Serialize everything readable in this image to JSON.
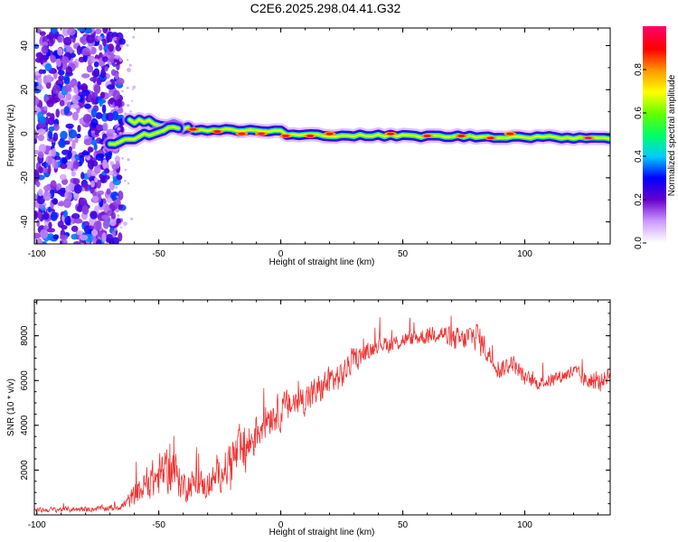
{
  "title": "C2E6.2025.298.04.41.G32",
  "chart_data": [
    {
      "type": "heatmap",
      "xlabel": "Height of straight line (km)",
      "ylabel": "Frequency (Hz)",
      "xlim": [
        -101,
        135
      ],
      "ylim": [
        -50,
        48
      ],
      "xticks": [
        -100,
        -50,
        0,
        50,
        100
      ],
      "yticks": [
        -40,
        -20,
        0,
        20,
        40
      ],
      "colorbar": {
        "label": "Normalized spectral amplitude",
        "ticks": [
          "0.0",
          "0.2",
          "0.4",
          "0.6",
          "0.8"
        ],
        "range": [
          0,
          1
        ],
        "colors": [
          "#ffffff",
          "#cc99ff",
          "#6600cc",
          "#0000ff",
          "#00ccff",
          "#00ff66",
          "#66ff00",
          "#ffff00",
          "#ff9900",
          "#ff0000",
          "#ff0066"
        ]
      },
      "regions": [
        {
          "name": "noise",
          "x": [
            -101,
            -68
          ],
          "y": [
            -50,
            48
          ],
          "level": 0.25
        },
        {
          "name": "split-branch-upper",
          "x": [
            -62,
            -38
          ],
          "y": [
            3,
            9
          ],
          "level": 0.5
        },
        {
          "name": "split-branch-lower",
          "x": [
            -70,
            -42
          ],
          "y": [
            -7,
            3
          ],
          "level": 0.5
        },
        {
          "name": "main-band",
          "x": [
            -40,
            135
          ],
          "y": [
            -3,
            3
          ],
          "level": 0.7
        }
      ],
      "hotspots": [
        {
          "x": -36,
          "y": 2,
          "v": 0.9
        },
        {
          "x": -26,
          "y": 1,
          "v": 0.9
        },
        {
          "x": -16,
          "y": 0,
          "v": 0.9
        },
        {
          "x": -8,
          "y": 0,
          "v": 1.0
        },
        {
          "x": 2,
          "y": -1,
          "v": 0.9
        },
        {
          "x": 12,
          "y": -1,
          "v": 0.9
        },
        {
          "x": 20,
          "y": 0,
          "v": 0.9
        },
        {
          "x": 45,
          "y": 0,
          "v": 0.9
        },
        {
          "x": 60,
          "y": -1,
          "v": 0.9
        },
        {
          "x": 74,
          "y": -1,
          "v": 0.9
        },
        {
          "x": 86,
          "y": -2,
          "v": 0.9
        },
        {
          "x": 94,
          "y": 0,
          "v": 0.9
        },
        {
          "x": 126,
          "y": -2,
          "v": 1.0
        }
      ]
    },
    {
      "type": "line",
      "xlabel": "Height of straight line (km)",
      "ylabel": "SNR (10 * v/v)",
      "xlim": [
        -101,
        135
      ],
      "ylim": [
        0,
        9600
      ],
      "xticks": [
        -100,
        -50,
        0,
        50,
        100
      ],
      "yticks": [
        2000,
        4000,
        6000,
        8000
      ],
      "color": "#ee3333",
      "x": [
        -101,
        -90,
        -80,
        -70,
        -65,
        -60,
        -55,
        -50,
        -45,
        -40,
        -35,
        -30,
        -25,
        -20,
        -15,
        -10,
        -5,
        0,
        5,
        10,
        15,
        20,
        25,
        30,
        35,
        40,
        45,
        50,
        55,
        60,
        65,
        70,
        75,
        80,
        85,
        90,
        95,
        100,
        105,
        110,
        115,
        120,
        125,
        130,
        135
      ],
      "y": [
        200,
        250,
        250,
        300,
        400,
        800,
        1400,
        1700,
        2200,
        1300,
        1400,
        1300,
        1800,
        2500,
        2800,
        3700,
        4500,
        4600,
        5000,
        5200,
        5500,
        6000,
        6200,
        7000,
        7200,
        7700,
        7600,
        7800,
        7900,
        8000,
        8200,
        7800,
        7800,
        8100,
        7200,
        6500,
        6800,
        6100,
        5900,
        6000,
        6200,
        6400,
        6000,
        5900,
        6300
      ],
      "amp": [
        150,
        150,
        150,
        180,
        250,
        700,
        900,
        1300,
        1400,
        900,
        800,
        800,
        900,
        1400,
        1600,
        1200,
        1100,
        1000,
        1000,
        900,
        900,
        900,
        800,
        600,
        500,
        500,
        500,
        450,
        500,
        500,
        600,
        700,
        700,
        900,
        700,
        600,
        500,
        450,
        400,
        400,
        400,
        450,
        500,
        500,
        500
      ]
    }
  ]
}
